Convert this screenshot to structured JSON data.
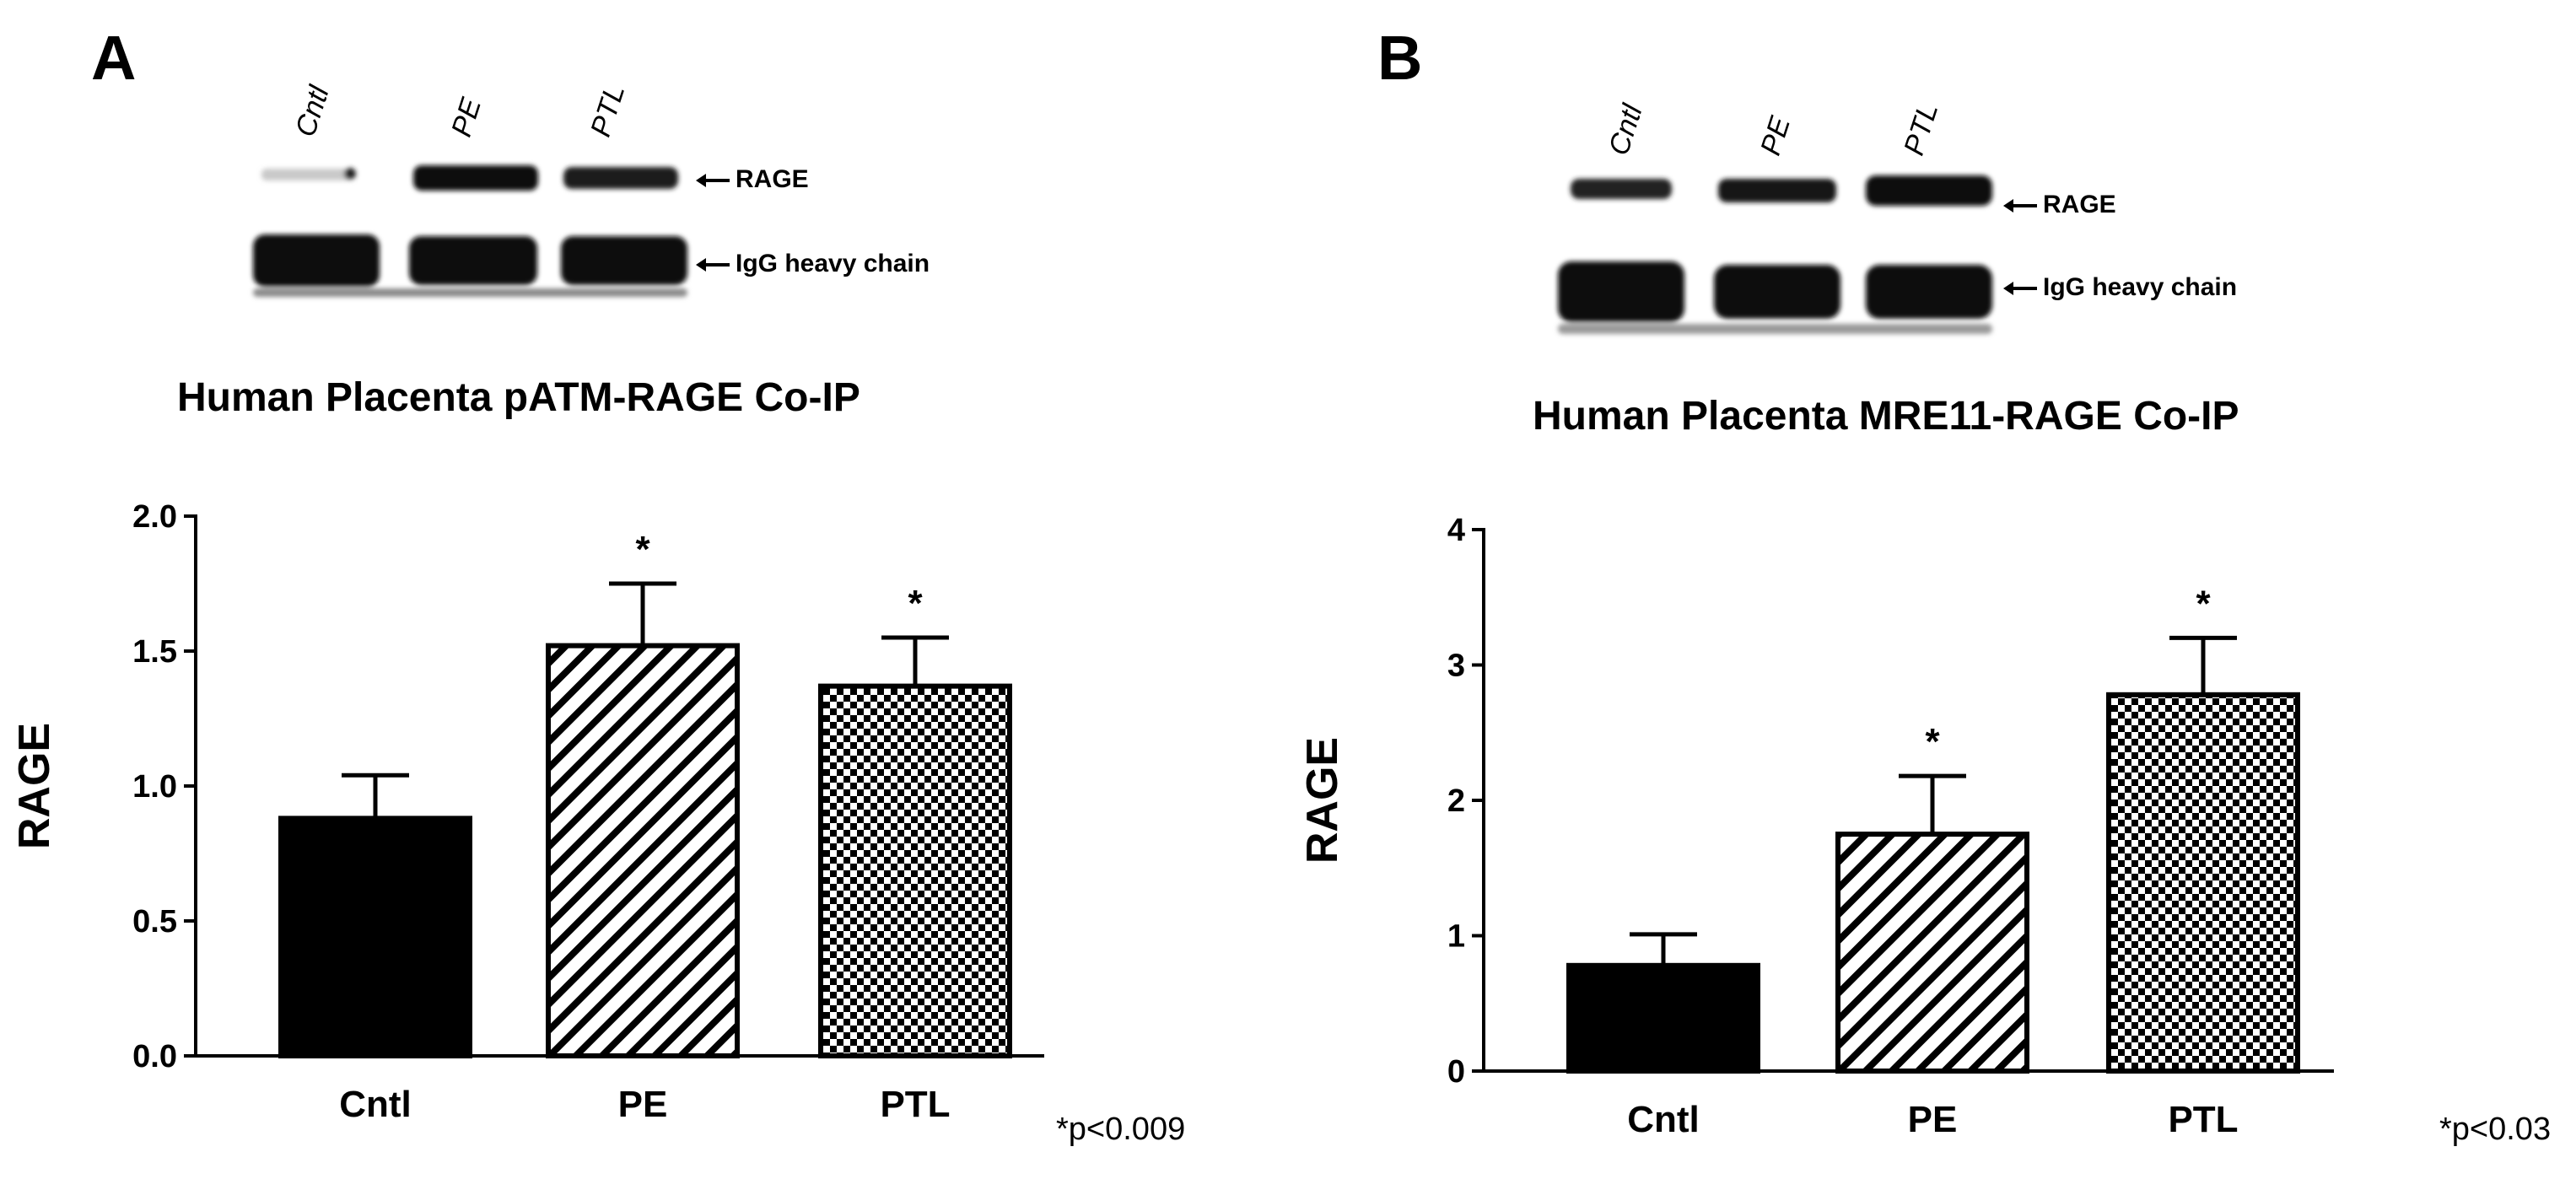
{
  "panels": [
    {
      "letter": "A",
      "blot": {
        "lanes": [
          "Cntl",
          "PE",
          "PTL"
        ],
        "bands": [
          "RAGE",
          "IgG heavy chain"
        ]
      },
      "significance": "*p<0.009"
    },
    {
      "letter": "B",
      "blot": {
        "lanes": [
          "Cntl",
          "PE",
          "PTL"
        ],
        "bands": [
          "RAGE",
          "IgG heavy chain"
        ]
      },
      "significance": "*p<0.03"
    }
  ],
  "chart_data": [
    {
      "type": "bar",
      "title": "Human Placenta pATM-RAGE Co-IP",
      "categories": [
        "Cntl",
        "PE",
        "PTL"
      ],
      "values": [
        0.88,
        1.52,
        1.37
      ],
      "errors": [
        0.16,
        0.23,
        0.18
      ],
      "annotations": [
        "",
        "*",
        "*"
      ],
      "fills": [
        "solid-black",
        "diagonal-stripes",
        "checkerboard"
      ],
      "xlabel": "",
      "ylabel": "RAGE",
      "ylim": [
        0,
        2.0
      ],
      "yticks": [
        0.0,
        0.5,
        1.0,
        1.5,
        2.0
      ],
      "ytick_labels": [
        "0.0",
        "0.5",
        "1.0",
        "1.5",
        "2.0"
      ],
      "grid": false,
      "colors": {
        "bar": "#000000",
        "background": "#ffffff"
      }
    },
    {
      "type": "bar",
      "title": "Human Placenta MRE11-RAGE Co-IP",
      "categories": [
        "Cntl",
        "PE",
        "PTL"
      ],
      "values": [
        0.78,
        1.75,
        2.78
      ],
      "errors": [
        0.23,
        0.43,
        0.42
      ],
      "annotations": [
        "",
        "*",
        "*"
      ],
      "fills": [
        "solid-black",
        "diagonal-stripes",
        "checkerboard"
      ],
      "xlabel": "",
      "ylabel": "RAGE",
      "ylim": [
        0,
        4
      ],
      "yticks": [
        0,
        1,
        2,
        3,
        4
      ],
      "ytick_labels": [
        "0",
        "1",
        "2",
        "3",
        "4"
      ],
      "grid": false,
      "colors": {
        "bar": "#000000",
        "background": "#ffffff"
      }
    }
  ]
}
